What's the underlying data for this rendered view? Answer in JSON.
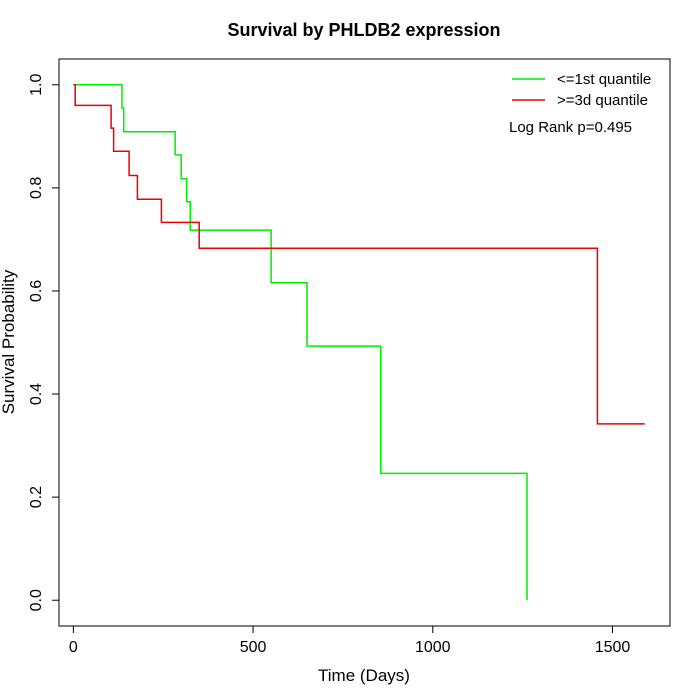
{
  "chart_data": {
    "type": "line",
    "title": "Survival by PHLDB2 expression",
    "xlabel": "Time (Days)",
    "ylabel": "Survival Probability",
    "xlim": [
      -40,
      1660
    ],
    "ylim": [
      -0.05,
      1.05
    ],
    "x_ticks": [
      0,
      500,
      1000,
      1500
    ],
    "x_tick_labels": [
      "0",
      "500",
      "1000",
      "1500"
    ],
    "y_ticks": [
      0.0,
      0.2,
      0.4,
      0.6,
      0.8,
      1.0
    ],
    "y_tick_labels": [
      "0.0",
      "0.2",
      "0.4",
      "0.6",
      "0.8",
      "1.0"
    ],
    "grid": false,
    "legend_position": "top-right",
    "annotation": "Log Rank p=0.495",
    "series": [
      {
        "name": "<=1st quantile",
        "color": "#00ee00",
        "points": [
          [
            0,
            1.0
          ],
          [
            135,
            1.0
          ],
          [
            135,
            0.955
          ],
          [
            140,
            0.955
          ],
          [
            140,
            0.909
          ],
          [
            283,
            0.909
          ],
          [
            283,
            0.864
          ],
          [
            300,
            0.864
          ],
          [
            300,
            0.818
          ],
          [
            315,
            0.818
          ],
          [
            315,
            0.773
          ],
          [
            325,
            0.773
          ],
          [
            325,
            0.718
          ],
          [
            550,
            0.718
          ],
          [
            550,
            0.616
          ],
          [
            650,
            0.616
          ],
          [
            650,
            0.493
          ],
          [
            855,
            0.493
          ],
          [
            855,
            0.246
          ],
          [
            1262,
            0.246
          ],
          [
            1262,
            0.0
          ]
        ]
      },
      {
        "name": ">=3d quantile",
        "color": "#ee0000",
        "points": [
          [
            0,
            1.0
          ],
          [
            5,
            1.0
          ],
          [
            5,
            0.96
          ],
          [
            105,
            0.96
          ],
          [
            105,
            0.916
          ],
          [
            112,
            0.916
          ],
          [
            112,
            0.871
          ],
          [
            155,
            0.871
          ],
          [
            155,
            0.824
          ],
          [
            178,
            0.824
          ],
          [
            178,
            0.778
          ],
          [
            245,
            0.778
          ],
          [
            245,
            0.733
          ],
          [
            350,
            0.733
          ],
          [
            350,
            0.683
          ],
          [
            1458,
            0.683
          ],
          [
            1458,
            0.342
          ],
          [
            1590,
            0.342
          ]
        ]
      }
    ]
  }
}
